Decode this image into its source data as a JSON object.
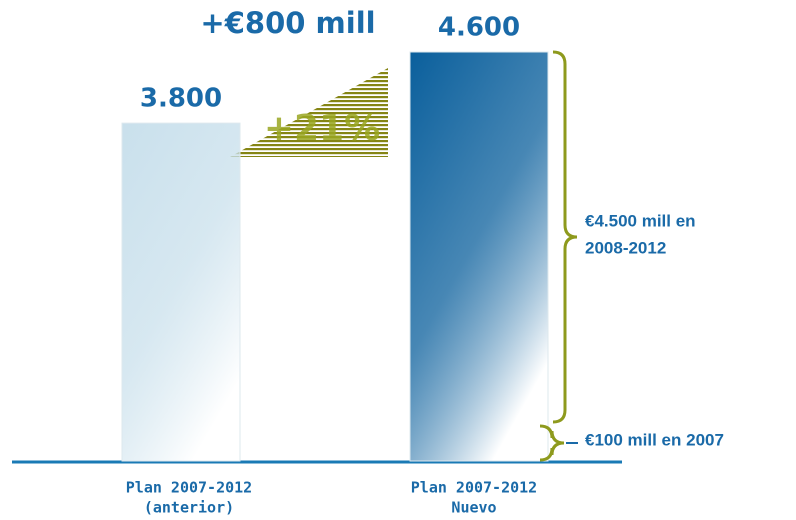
{
  "chart_data": {
    "type": "bar",
    "categories": [
      [
        "Plan 2007-2012",
        "(anterior)"
      ],
      [
        "Plan 2007-2012",
        "Nuevo"
      ]
    ],
    "values": [
      3800,
      4600
    ],
    "value_labels": [
      "3.800",
      "4.600"
    ],
    "colors": [
      "#c9e0ec",
      "#0a5f9c"
    ],
    "annotations": {
      "increase": "+€800 mill",
      "percent": "+21%",
      "brace_upper": [
        "€4.500 mill en",
        "2008-2012"
      ],
      "brace_lower": "€100 mill en 2007"
    }
  }
}
